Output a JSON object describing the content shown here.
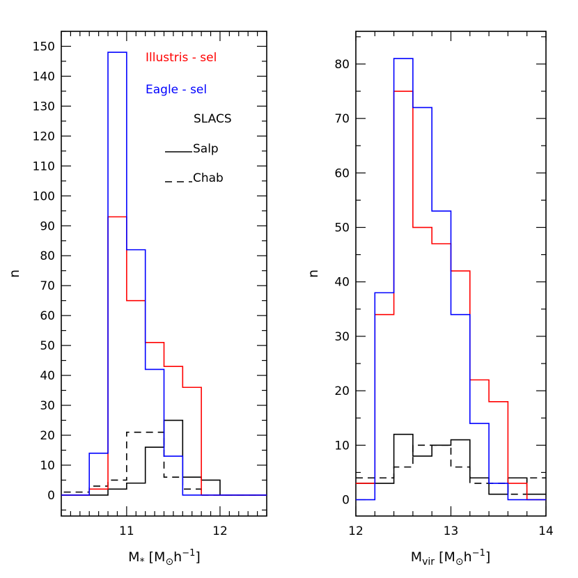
{
  "chart_data": [
    {
      "type": "histogram",
      "xlabel": "M* [M⊙h⁻¹]",
      "ylabel": "n",
      "xlim": [
        10.3,
        12.5
      ],
      "ylim": [
        -7,
        155
      ],
      "x_ticks": [
        11,
        12
      ],
      "y_ticks": [
        0,
        10,
        20,
        30,
        40,
        50,
        60,
        70,
        80,
        90,
        100,
        110,
        120,
        130,
        140,
        150
      ],
      "bin_edges": [
        10.2,
        10.4,
        10.6,
        10.8,
        11.0,
        11.2,
        11.4,
        11.6,
        11.8,
        12.0,
        12.2,
        12.4,
        12.6
      ],
      "series": [
        {
          "name": "Illustris - sel",
          "color": "#ff0000",
          "style": "solid",
          "values": [
            0,
            0,
            2,
            93,
            65,
            51,
            43,
            36,
            0,
            0,
            0,
            0
          ]
        },
        {
          "name": "Eagle - sel",
          "color": "#0000ff",
          "style": "solid",
          "values": [
            0,
            0,
            14,
            148,
            82,
            42,
            13,
            0,
            0,
            0,
            0,
            0
          ]
        },
        {
          "name": "Salp",
          "color": "#000000",
          "style": "solid",
          "values": [
            0,
            0,
            0,
            2,
            4,
            16,
            25,
            6,
            5,
            0,
            0,
            0
          ]
        },
        {
          "name": "Chab",
          "color": "#000000",
          "style": "dashed",
          "values": [
            1,
            1,
            3,
            5,
            21,
            21,
            6,
            2,
            0,
            0,
            0,
            0
          ]
        }
      ],
      "legend": {
        "title": "SLACS",
        "placement": "top-right"
      }
    },
    {
      "type": "histogram",
      "xlabel": "Mvir [M⊙h⁻¹]",
      "ylabel": "n",
      "xlim": [
        12,
        14
      ],
      "ylim": [
        -3,
        86
      ],
      "x_ticks": [
        12,
        13,
        14
      ],
      "y_ticks": [
        0,
        10,
        20,
        30,
        40,
        50,
        60,
        70,
        80
      ],
      "bin_edges": [
        12.0,
        12.2,
        12.4,
        12.6,
        12.8,
        13.0,
        13.2,
        13.4,
        13.6,
        13.8,
        14.0
      ],
      "series": [
        {
          "name": "Illustris - sel",
          "color": "#ff0000",
          "style": "solid",
          "values": [
            3,
            34,
            75,
            50,
            47,
            42,
            22,
            18,
            3,
            0
          ]
        },
        {
          "name": "Eagle - sel",
          "color": "#0000ff",
          "style": "solid",
          "values": [
            0,
            38,
            81,
            72,
            53,
            34,
            14,
            3,
            0,
            0
          ]
        },
        {
          "name": "Salp",
          "color": "#000000",
          "style": "solid",
          "values": [
            3,
            3,
            12,
            8,
            10,
            11,
            4,
            1,
            4,
            1
          ]
        },
        {
          "name": "Chab",
          "color": "#000000",
          "style": "dashed",
          "values": [
            4,
            4,
            6,
            10,
            10,
            6,
            3,
            3,
            1,
            4
          ]
        }
      ]
    }
  ]
}
